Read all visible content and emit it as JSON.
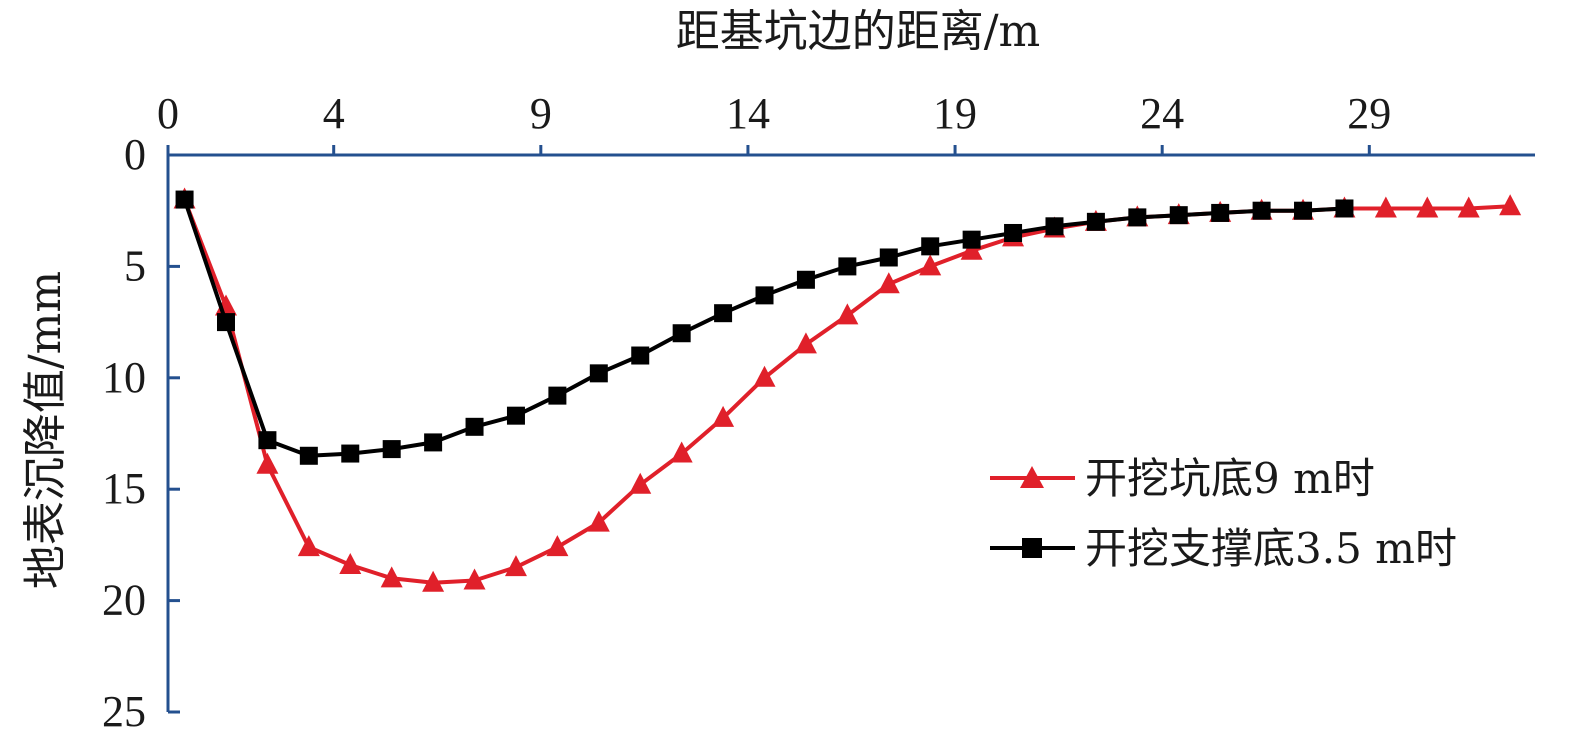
{
  "chart_data": {
    "type": "line",
    "xlabel": "距基坑边的距离/m",
    "ylabel": "地表沉降值/mm",
    "xlim": [
      0,
      33
    ],
    "ylim": [
      0,
      25
    ],
    "y_inverted": true,
    "x_axis_position": "top",
    "x_ticks": [
      0,
      4,
      9,
      14,
      19,
      24,
      29
    ],
    "y_ticks": [
      0,
      5,
      10,
      15,
      20,
      25
    ],
    "grid": false,
    "legend_position": "right",
    "series": [
      {
        "name": "开挖坑底9 m时",
        "color": "#e0202a",
        "marker": "triangle",
        "x": [
          0.4,
          1.4,
          2.4,
          3.4,
          4.4,
          5.4,
          6.4,
          7.4,
          8.4,
          9.4,
          10.4,
          11.4,
          12.4,
          13.4,
          14.4,
          15.4,
          16.4,
          17.4,
          18.4,
          19.4,
          20.4,
          21.4,
          22.4,
          23.4,
          24.4,
          25.4,
          26.4,
          27.4,
          28.4,
          29.4,
          30.4,
          31.4,
          32.4
        ],
        "y": [
          2.0,
          6.8,
          13.9,
          17.6,
          18.4,
          19.0,
          19.2,
          19.1,
          18.5,
          17.6,
          16.5,
          14.8,
          13.4,
          11.8,
          10.0,
          8.5,
          7.2,
          5.8,
          5.0,
          4.3,
          3.7,
          3.3,
          3.0,
          2.8,
          2.7,
          2.6,
          2.5,
          2.5,
          2.4,
          2.4,
          2.4,
          2.4,
          2.3
        ]
      },
      {
        "name": "开挖支撑底3.5 m时",
        "color": "#000000",
        "marker": "square",
        "x": [
          0.4,
          1.4,
          2.4,
          3.4,
          4.4,
          5.4,
          6.4,
          7.4,
          8.4,
          9.4,
          10.4,
          11.4,
          12.4,
          13.4,
          14.4,
          15.4,
          16.4,
          17.4,
          18.4,
          19.4,
          20.4,
          21.4,
          22.4,
          23.4,
          24.4,
          25.4,
          26.4,
          27.4,
          28.4
        ],
        "y": [
          2.0,
          7.5,
          12.8,
          13.5,
          13.4,
          13.2,
          12.9,
          12.2,
          11.7,
          10.8,
          9.8,
          9.0,
          8.0,
          7.1,
          6.3,
          5.6,
          5.0,
          4.6,
          4.1,
          3.8,
          3.5,
          3.2,
          3.0,
          2.8,
          2.7,
          2.6,
          2.5,
          2.5,
          2.4
        ]
      }
    ]
  }
}
